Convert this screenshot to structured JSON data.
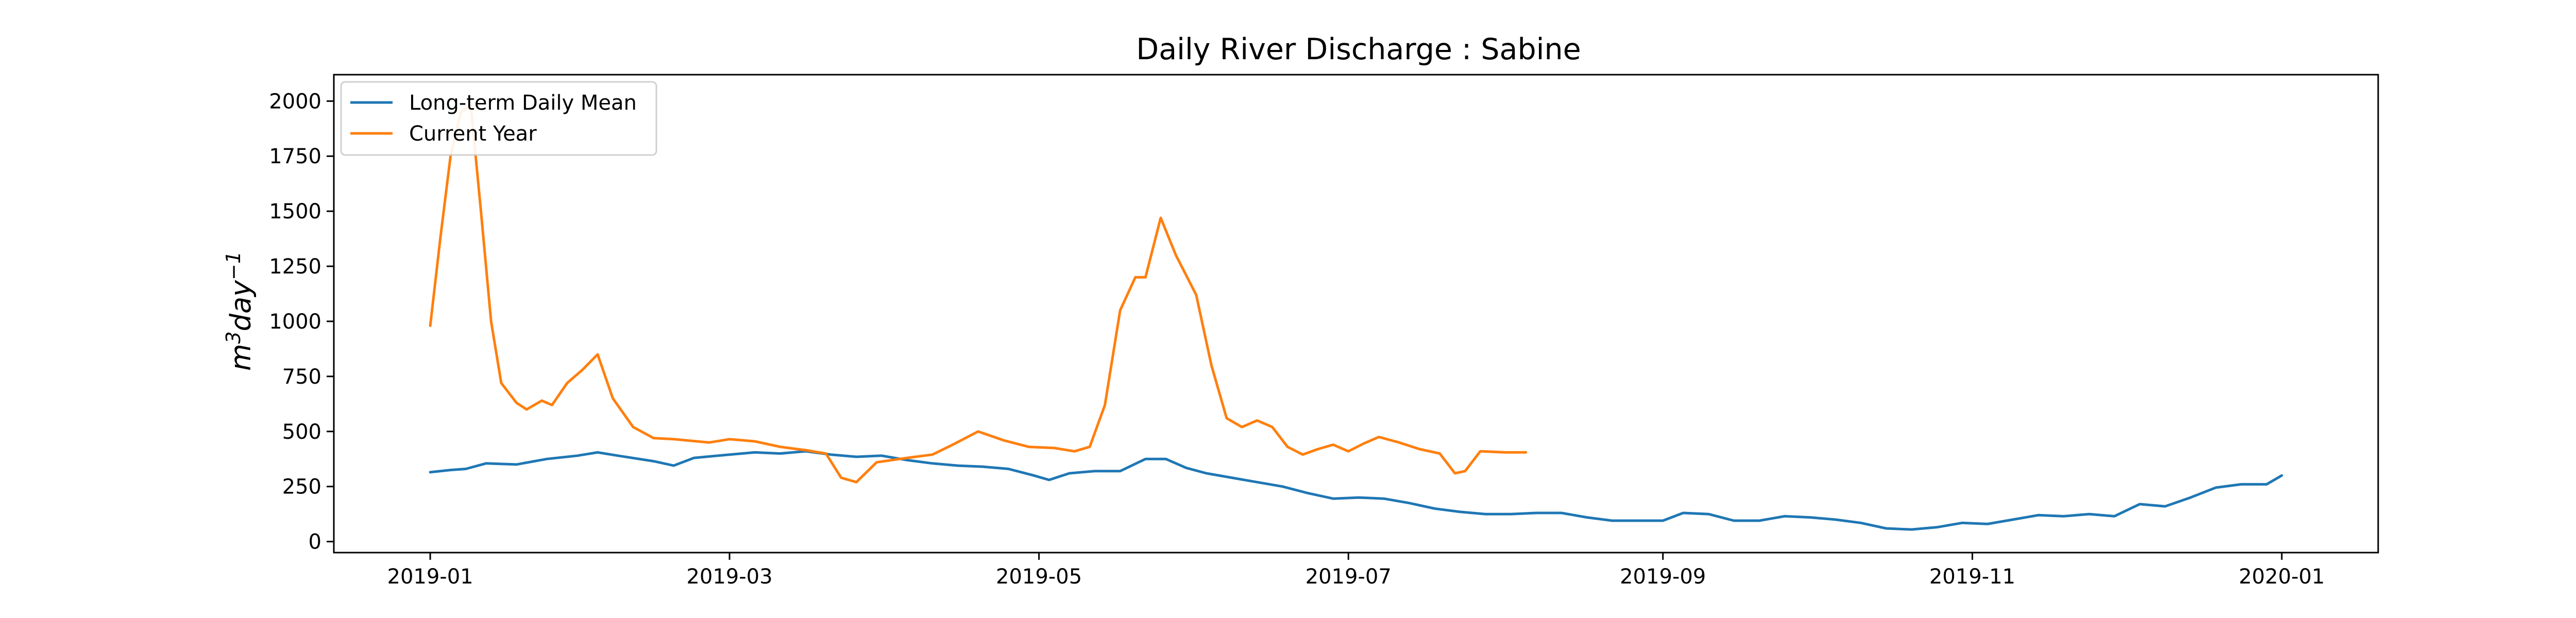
{
  "chart_data": {
    "type": "line",
    "title": "Daily River Discharge : Sabine",
    "ylabel_base": "m",
    "ylabel_sup1": "3",
    "ylabel_mid": "day",
    "ylabel_sup2": "−1",
    "ylim": [
      -50,
      2120
    ],
    "xlim": [
      "2018-12-13",
      "2020-01-20"
    ],
    "yticks": [
      0,
      250,
      500,
      750,
      1000,
      1250,
      1500,
      1750,
      2000
    ],
    "ytick_labels": [
      "0",
      "250",
      "500",
      "750",
      "1000",
      "1250",
      "1500",
      "1750",
      "2000"
    ],
    "xticks": [
      "2019-01-01",
      "2019-03-01",
      "2019-05-01",
      "2019-07-01",
      "2019-09-01",
      "2019-11-01",
      "2020-01-01"
    ],
    "xtick_labels": [
      "2019-01",
      "2019-03",
      "2019-05",
      "2019-07",
      "2019-09",
      "2019-11",
      "2020-01"
    ],
    "grid": false,
    "legend_position": "top-left",
    "series": [
      {
        "name": "Long-term Daily Mean",
        "color": "#1f77b4",
        "points": [
          [
            "2019-01-01",
            315
          ],
          [
            "2019-01-05",
            325
          ],
          [
            "2019-01-08",
            330
          ],
          [
            "2019-01-12",
            355
          ],
          [
            "2019-01-18",
            350
          ],
          [
            "2019-01-24",
            375
          ],
          [
            "2019-01-30",
            390
          ],
          [
            "2019-02-03",
            405
          ],
          [
            "2019-02-07",
            390
          ],
          [
            "2019-02-14",
            365
          ],
          [
            "2019-02-18",
            345
          ],
          [
            "2019-02-22",
            380
          ],
          [
            "2019-03-01",
            395
          ],
          [
            "2019-03-06",
            405
          ],
          [
            "2019-03-11",
            400
          ],
          [
            "2019-03-16",
            410
          ],
          [
            "2019-03-21",
            395
          ],
          [
            "2019-03-26",
            385
          ],
          [
            "2019-03-31",
            390
          ],
          [
            "2019-04-05",
            370
          ],
          [
            "2019-04-10",
            355
          ],
          [
            "2019-04-15",
            345
          ],
          [
            "2019-04-20",
            340
          ],
          [
            "2019-04-25",
            330
          ],
          [
            "2019-04-30",
            300
          ],
          [
            "2019-05-03",
            280
          ],
          [
            "2019-05-07",
            310
          ],
          [
            "2019-05-12",
            320
          ],
          [
            "2019-05-17",
            320
          ],
          [
            "2019-05-22",
            375
          ],
          [
            "2019-05-26",
            375
          ],
          [
            "2019-05-30",
            335
          ],
          [
            "2019-06-03",
            310
          ],
          [
            "2019-06-08",
            290
          ],
          [
            "2019-06-13",
            270
          ],
          [
            "2019-06-18",
            250
          ],
          [
            "2019-06-23",
            220
          ],
          [
            "2019-06-28",
            195
          ],
          [
            "2019-07-03",
            200
          ],
          [
            "2019-07-08",
            195
          ],
          [
            "2019-07-13",
            175
          ],
          [
            "2019-07-18",
            150
          ],
          [
            "2019-07-23",
            135
          ],
          [
            "2019-07-28",
            125
          ],
          [
            "2019-08-02",
            125
          ],
          [
            "2019-08-07",
            130
          ],
          [
            "2019-08-12",
            130
          ],
          [
            "2019-08-17",
            110
          ],
          [
            "2019-08-22",
            95
          ],
          [
            "2019-08-27",
            95
          ],
          [
            "2019-09-01",
            95
          ],
          [
            "2019-09-05",
            130
          ],
          [
            "2019-09-10",
            125
          ],
          [
            "2019-09-15",
            95
          ],
          [
            "2019-09-20",
            95
          ],
          [
            "2019-09-25",
            115
          ],
          [
            "2019-09-30",
            110
          ],
          [
            "2019-10-05",
            100
          ],
          [
            "2019-10-10",
            85
          ],
          [
            "2019-10-15",
            60
          ],
          [
            "2019-10-20",
            55
          ],
          [
            "2019-10-25",
            65
          ],
          [
            "2019-10-30",
            85
          ],
          [
            "2019-11-04",
            80
          ],
          [
            "2019-11-09",
            100
          ],
          [
            "2019-11-14",
            120
          ],
          [
            "2019-11-19",
            115
          ],
          [
            "2019-11-24",
            125
          ],
          [
            "2019-11-29",
            115
          ],
          [
            "2019-12-04",
            170
          ],
          [
            "2019-12-09",
            160
          ],
          [
            "2019-12-14",
            200
          ],
          [
            "2019-12-19",
            245
          ],
          [
            "2019-12-24",
            260
          ],
          [
            "2019-12-29",
            260
          ],
          [
            "2020-01-01",
            300
          ]
        ]
      },
      {
        "name": "Current Year",
        "color": "#ff7f0e",
        "points": [
          [
            "2019-01-01",
            980
          ],
          [
            "2019-01-03",
            1380
          ],
          [
            "2019-01-05",
            1750
          ],
          [
            "2019-01-07",
            1950
          ],
          [
            "2019-01-09",
            1980
          ],
          [
            "2019-01-11",
            1500
          ],
          [
            "2019-01-13",
            1000
          ],
          [
            "2019-01-15",
            720
          ],
          [
            "2019-01-18",
            630
          ],
          [
            "2019-01-20",
            600
          ],
          [
            "2019-01-23",
            640
          ],
          [
            "2019-01-25",
            620
          ],
          [
            "2019-01-28",
            720
          ],
          [
            "2019-01-31",
            780
          ],
          [
            "2019-02-03",
            850
          ],
          [
            "2019-02-06",
            650
          ],
          [
            "2019-02-10",
            520
          ],
          [
            "2019-02-14",
            470
          ],
          [
            "2019-02-18",
            465
          ],
          [
            "2019-02-25",
            450
          ],
          [
            "2019-03-01",
            465
          ],
          [
            "2019-03-06",
            455
          ],
          [
            "2019-03-11",
            430
          ],
          [
            "2019-03-16",
            415
          ],
          [
            "2019-03-20",
            400
          ],
          [
            "2019-03-23",
            290
          ],
          [
            "2019-03-26",
            270
          ],
          [
            "2019-03-30",
            360
          ],
          [
            "2019-04-05",
            380
          ],
          [
            "2019-04-10",
            395
          ],
          [
            "2019-04-14",
            440
          ],
          [
            "2019-04-19",
            500
          ],
          [
            "2019-04-24",
            460
          ],
          [
            "2019-04-29",
            430
          ],
          [
            "2019-05-04",
            425
          ],
          [
            "2019-05-08",
            410
          ],
          [
            "2019-05-11",
            430
          ],
          [
            "2019-05-14",
            620
          ],
          [
            "2019-05-17",
            1050
          ],
          [
            "2019-05-20",
            1200
          ],
          [
            "2019-05-22",
            1200
          ],
          [
            "2019-05-25",
            1470
          ],
          [
            "2019-05-28",
            1300
          ],
          [
            "2019-06-01",
            1120
          ],
          [
            "2019-06-04",
            800
          ],
          [
            "2019-06-07",
            560
          ],
          [
            "2019-06-10",
            520
          ],
          [
            "2019-06-13",
            550
          ],
          [
            "2019-06-16",
            520
          ],
          [
            "2019-06-19",
            430
          ],
          [
            "2019-06-22",
            395
          ],
          [
            "2019-06-25",
            420
          ],
          [
            "2019-06-28",
            440
          ],
          [
            "2019-07-01",
            410
          ],
          [
            "2019-07-04",
            445
          ],
          [
            "2019-07-07",
            475
          ],
          [
            "2019-07-11",
            450
          ],
          [
            "2019-07-15",
            420
          ],
          [
            "2019-07-19",
            400
          ],
          [
            "2019-07-22",
            310
          ],
          [
            "2019-07-24",
            320
          ],
          [
            "2019-07-27",
            410
          ],
          [
            "2019-08-01",
            405
          ],
          [
            "2019-08-05",
            405
          ]
        ]
      }
    ]
  }
}
